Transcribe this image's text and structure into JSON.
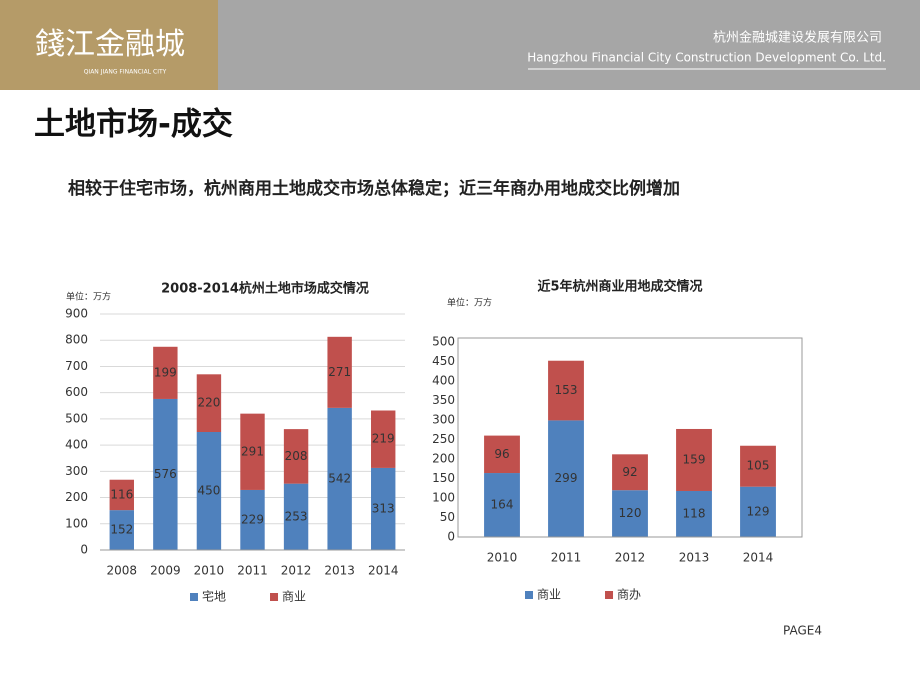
{
  "header": {
    "logo": "錢江金融城",
    "logo_en": "QIAN JIANG FINANCIAL CITY",
    "company_cn": "杭州金融城建设发展有限公司",
    "company_en": "Hangzhou Financial City Construction Development Co. Ltd."
  },
  "title": "土地市场-成交",
  "subtitle": "相较于住宅市场，杭州商用土地成交市场总体稳定；近三年商办用地成交比例增加",
  "page": "PAGE4",
  "chart_data": [
    {
      "type": "bar",
      "stacked": true,
      "title": "2008-2014杭州土地市场成交情况",
      "unit": "单位：万方",
      "categories": [
        "2008",
        "2009",
        "2010",
        "2011",
        "2012",
        "2013",
        "2014"
      ],
      "series": [
        {
          "name": "宅地",
          "color": "#4f81bd",
          "values": [
            152,
            576,
            450,
            229,
            253,
            542,
            313
          ]
        },
        {
          "name": "商业",
          "color": "#c0504d",
          "values": [
            116,
            199,
            220,
            291,
            208,
            271,
            219
          ]
        }
      ],
      "ylim": [
        0,
        900
      ],
      "yticks": [
        0,
        100,
        200,
        300,
        400,
        500,
        600,
        700,
        800,
        900
      ],
      "grid": true
    },
    {
      "type": "bar",
      "stacked": true,
      "title": "近5年杭州商业用地成交情况",
      "unit": "单位：万方",
      "categories": [
        "2010",
        "2011",
        "2012",
        "2013",
        "2014"
      ],
      "series": [
        {
          "name": "商业",
          "color": "#4f81bd",
          "values": [
            164,
            299,
            120,
            118,
            129
          ]
        },
        {
          "name": "商办",
          "color": "#c0504d",
          "values": [
            96,
            153,
            92,
            159,
            105
          ]
        }
      ],
      "ylim": [
        0,
        500
      ],
      "yticks": [
        0,
        50,
        100,
        150,
        200,
        250,
        300,
        350,
        400,
        450,
        500
      ],
      "grid": false
    }
  ]
}
